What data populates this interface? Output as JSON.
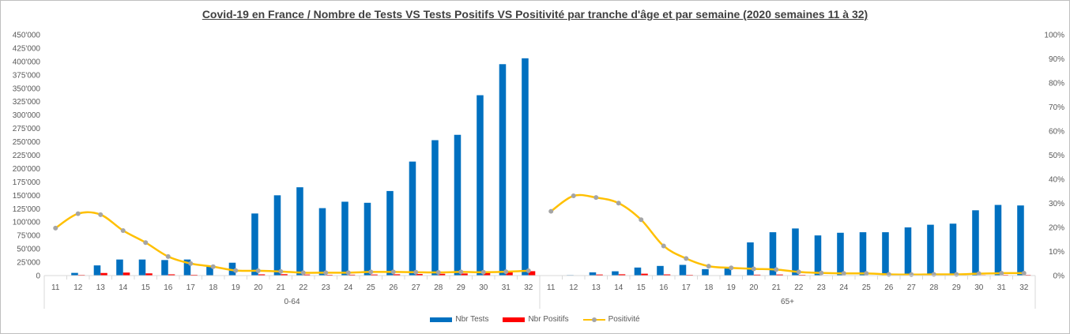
{
  "chart_data": {
    "type": "bar",
    "title": "Covid-19 en France / Nombre de Tests VS Tests Positifs VS Positivité par tranche d'âge et par semaine (2020 semaines 11 à 32)",
    "groups": [
      {
        "label": "0-64",
        "weeks": [
          "11",
          "12",
          "13",
          "14",
          "15",
          "16",
          "17",
          "18",
          "19",
          "20",
          "21",
          "22",
          "23",
          "24",
          "25",
          "26",
          "27",
          "28",
          "29",
          "30",
          "31",
          "32"
        ],
        "nbr_tests": [
          0,
          5000,
          19000,
          30000,
          30000,
          29000,
          30000,
          19000,
          24000,
          116000,
          150000,
          165000,
          126000,
          138000,
          136000,
          158000,
          213000,
          253000,
          263000,
          337000,
          395000,
          406000
        ],
        "nbr_positifs": [
          0,
          1300,
          4800,
          5600,
          4100,
          2300,
          1500,
          700,
          500,
          2300,
          2600,
          2000,
          1500,
          1700,
          2000,
          2400,
          2900,
          3300,
          3900,
          4700,
          6100,
          8200
        ],
        "positivite": [
          19.7,
          25.7,
          25.3,
          18.7,
          13.7,
          7.9,
          5.0,
          3.7,
          2.1,
          2.0,
          1.7,
          1.2,
          1.2,
          1.2,
          1.5,
          1.5,
          1.4,
          1.3,
          1.5,
          1.4,
          1.6,
          2.0
        ]
      },
      {
        "label": "65+",
        "weeks": [
          "11",
          "12",
          "13",
          "14",
          "15",
          "16",
          "17",
          "18",
          "19",
          "20",
          "21",
          "22",
          "23",
          "24",
          "25",
          "26",
          "27",
          "28",
          "29",
          "30",
          "31",
          "32"
        ],
        "nbr_tests": [
          0,
          1000,
          6000,
          8000,
          15000,
          18000,
          20000,
          12000,
          14000,
          62000,
          81000,
          88000,
          75000,
          80000,
          81000,
          81000,
          90000,
          95000,
          97000,
          122000,
          132000,
          131000
        ],
        "nbr_positifs": [
          0,
          300,
          2000,
          2400,
          3500,
          2200,
          1400,
          500,
          450,
          1700,
          2000,
          1400,
          800,
          700,
          700,
          400,
          400,
          500,
          500,
          1000,
          1300,
          1300
        ],
        "positivite": [
          26.7,
          33.1,
          32.4,
          30.1,
          23.2,
          12.3,
          7.1,
          3.9,
          3.2,
          2.8,
          2.5,
          1.5,
          1.1,
          0.9,
          0.9,
          0.5,
          0.4,
          0.5,
          0.5,
          0.8,
          1.0,
          1.0
        ]
      }
    ],
    "y_left": {
      "ylim": [
        0,
        450000
      ],
      "tick_labels": [
        "0",
        "25'000",
        "50'000",
        "75'000",
        "100'000",
        "125'000",
        "150'000",
        "175'000",
        "200'000",
        "225'000",
        "250'000",
        "275'000",
        "300'000",
        "325'000",
        "350'000",
        "375'000",
        "400'000",
        "425'000",
        "450'000"
      ]
    },
    "y_right": {
      "ylim": [
        0,
        100
      ],
      "tick_labels": [
        "0%",
        "10%",
        "20%",
        "30%",
        "40%",
        "50%",
        "60%",
        "70%",
        "80%",
        "90%",
        "100%"
      ]
    },
    "series": [
      {
        "name": "Nbr Tests",
        "kind": "bar",
        "axis": "left",
        "color": "#0070c0"
      },
      {
        "name": "Nbr Positifs",
        "kind": "bar",
        "axis": "left",
        "color": "#ff0000"
      },
      {
        "name": "Positivité",
        "kind": "line",
        "axis": "right",
        "color": "#ffc000",
        "marker_color": "#a5a5a5"
      }
    ],
    "grid": false,
    "legend_position": "bottom"
  }
}
